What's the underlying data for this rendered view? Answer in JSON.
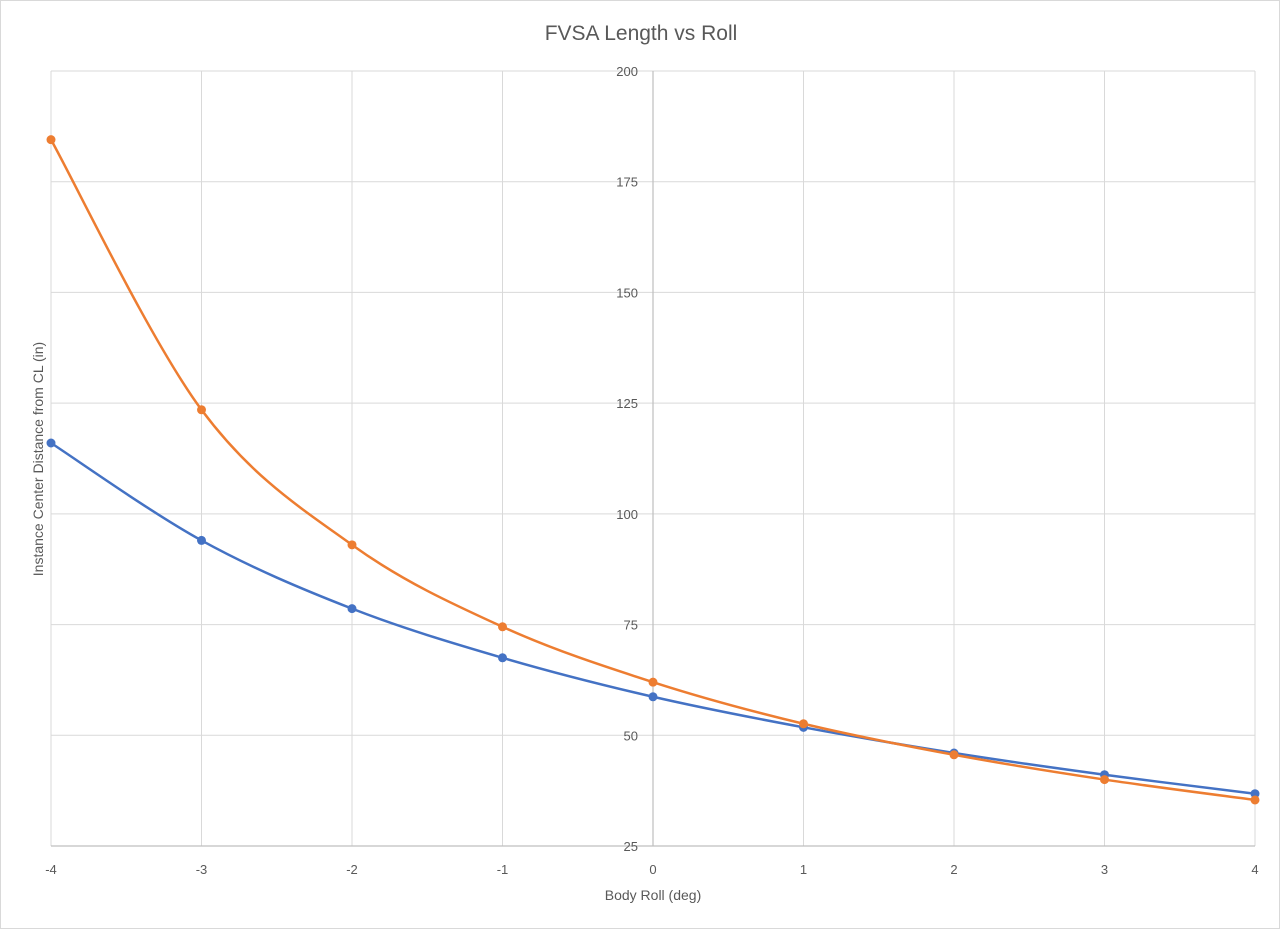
{
  "chart_data": {
    "type": "line",
    "title": "FVSA Length vs Roll",
    "xlabel": "Body Roll (deg)",
    "ylabel": "Instance Center Distance from CL (in)",
    "xlim": [
      -4,
      4
    ],
    "ylim": [
      25,
      200
    ],
    "x_ticks": [
      "-4",
      "-3",
      "-2",
      "-1",
      "0",
      "1",
      "2",
      "3",
      "4"
    ],
    "y_ticks": [
      "25",
      "50",
      "75",
      "100",
      "125",
      "150",
      "175",
      "200"
    ],
    "x": [
      -4,
      -3,
      -2,
      -1,
      0,
      1,
      2,
      3,
      4
    ],
    "series": [
      {
        "color": "#4472C4",
        "values": [
          116,
          94,
          78.6,
          67.5,
          58.7,
          51.8,
          46.0,
          41.1,
          36.8
        ]
      },
      {
        "color": "#ED7D31",
        "values": [
          184.5,
          123.5,
          93,
          74.5,
          62,
          52.6,
          45.6,
          40.0,
          35.4
        ]
      }
    ],
    "grid": true,
    "legend": "none",
    "markers": "circle",
    "smooth": true
  }
}
